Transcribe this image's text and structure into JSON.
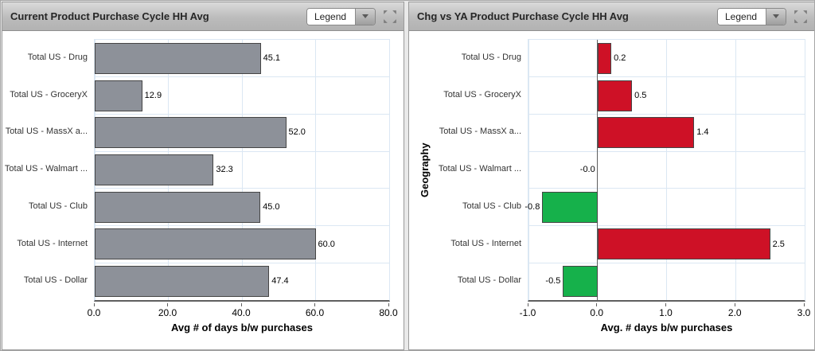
{
  "page": {
    "background": "#e9e9e9"
  },
  "icons": {
    "legend_caret": "chevron-down-icon",
    "panel_resize": "expand-arrows-icon"
  },
  "panels": [
    {
      "title": "Current Product Purchase Cycle HH Avg",
      "legend_label": "Legend"
    },
    {
      "title": "Chg vs YA Product Purchase Cycle HH Avg",
      "legend_label": "Legend"
    }
  ],
  "chart_data": [
    {
      "type": "bar",
      "orientation": "horizontal",
      "title": "Current Product Purchase Cycle HH Avg",
      "categories": [
        "Total US - Drug",
        "Total US - GroceryX",
        "Total US - MassX a...",
        "Total US - Walmart ...",
        "Total US - Club",
        "Total US - Internet",
        "Total US - Dollar"
      ],
      "values": [
        45.1,
        12.9,
        52.0,
        32.3,
        45.0,
        60.0,
        47.4
      ],
      "value_labels": [
        "45.1",
        "12.9",
        "52.0",
        "32.3",
        "45.0",
        "60.0",
        "47.4"
      ],
      "xlabel": "Avg # of days b/w purchases",
      "ylabel": "",
      "xlim": [
        0,
        80
      ],
      "xtick_values": [
        0,
        20,
        40,
        60,
        80
      ],
      "xtick_labels": [
        "0.0",
        "20.0",
        "40.0",
        "60.0",
        "80.0"
      ],
      "bar_color": "#8d9199",
      "bar_border_color": "#454545",
      "grid": true,
      "grid_color": "#dbe7f3",
      "legend_position": "header-dropdown"
    },
    {
      "type": "bar",
      "orientation": "horizontal",
      "title": "Chg vs YA Product Purchase Cycle HH Avg",
      "categories": [
        "Total US - Drug",
        "Total US - GroceryX",
        "Total US - MassX a...",
        "Total US - Walmart ...",
        "Total US - Club",
        "Total US - Internet",
        "Total US - Dollar"
      ],
      "values": [
        0.2,
        0.5,
        1.4,
        -0.0,
        -0.8,
        2.5,
        -0.5
      ],
      "value_labels": [
        "0.2",
        "0.5",
        "1.4",
        "-0.0",
        "-0.8",
        "2.5",
        "-0.5"
      ],
      "xlabel": "Avg. # days b/w purchases",
      "ylabel": "Geography",
      "xlim": [
        -1,
        3
      ],
      "xtick_values": [
        -1,
        0,
        1,
        2,
        3
      ],
      "xtick_labels": [
        "-1.0",
        "0.0",
        "1.0",
        "2.0",
        "3.0"
      ],
      "positive_color": "#ce1126",
      "negative_color": "#16b14b",
      "bar_border_color": "#454545",
      "grid": true,
      "grid_color": "#dbe7f3",
      "legend_position": "header-dropdown"
    }
  ]
}
